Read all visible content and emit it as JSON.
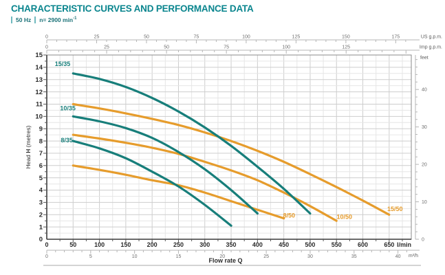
{
  "header": {
    "title": "CHARACTERISTIC CURVES AND PERFORMANCE DATA",
    "frequency": "50 Hz",
    "speed_prefix": "n= 2900 min",
    "speed_sup": "-1"
  },
  "chart_data": {
    "type": "line",
    "title": "CHARACTERISTIC CURVES AND PERFORMANCE DATA",
    "subtitle": "50 Hz | n= 2900 min-1",
    "grid": {
      "x_minor_lmin": 25,
      "x_major_lmin": 50,
      "y_minor_m": 0.5,
      "y_major_m": 1
    },
    "x_axis": {
      "label_parts": [
        "Flow rate ",
        "Q"
      ],
      "range_lmin": [
        0,
        692
      ],
      "primary": {
        "unit": "l/min",
        "ticks": [
          0,
          50,
          100,
          150,
          200,
          250,
          300,
          350,
          400,
          450,
          500,
          550,
          600,
          650
        ]
      },
      "secondary": {
        "unit": "m³/h",
        "ticks": [
          0,
          5,
          10,
          15,
          20,
          25,
          30,
          35,
          40
        ],
        "minor_step": 1,
        "lmin_per_unit": 16.6667,
        "minor_max": 41
      },
      "top_rulers": [
        {
          "unit": "US g.p.m.",
          "ticks": [
            0,
            25,
            50,
            75,
            100,
            125,
            150,
            175
          ],
          "minor_step": 5,
          "lmin_per_unit": 3.7854,
          "minor_max": 180
        },
        {
          "unit": "Imp g.p.m.",
          "ticks": [
            0,
            25,
            50,
            75,
            100,
            125
          ],
          "minor_step": 5,
          "lmin_per_unit": 4.5461,
          "minor_max": 150
        }
      ]
    },
    "y_axis": {
      "label_parts": [
        "Head ",
        "H",
        " (metres)"
      ],
      "range_m": [
        0,
        15
      ],
      "ticks": [
        0,
        1,
        2,
        3,
        4,
        5,
        6,
        7,
        8,
        9,
        10,
        11,
        12,
        13,
        14,
        15
      ],
      "right_ruler": {
        "unit": "feet",
        "ticks": [
          0,
          10,
          20,
          30,
          40
        ],
        "minor_step": 2,
        "m_per_unit": 0.3048,
        "minor_max": 48
      }
    },
    "colors": {
      "teal": "#177E7A",
      "orange": "#E69C2C",
      "grid_minor": "#e6e6e6",
      "grid_major": "#cdcdcd",
      "plot_border": "#8a8a8a",
      "axis_dark": "#3a3a3a",
      "ruler": "#b5b5b5",
      "rule_line": "#a8a8a8"
    },
    "series": [
      {
        "name": "15/50",
        "color": "#E69C2C",
        "label_at": [
          661,
          2.3
        ],
        "points": [
          [
            50,
            11.0
          ],
          [
            100,
            10.65
          ],
          [
            150,
            10.25
          ],
          [
            200,
            9.8
          ],
          [
            250,
            9.3
          ],
          [
            300,
            8.7
          ],
          [
            350,
            8.0
          ],
          [
            400,
            7.2
          ],
          [
            450,
            6.3
          ],
          [
            500,
            5.3
          ],
          [
            550,
            4.25
          ],
          [
            600,
            3.15
          ],
          [
            650,
            2.0
          ]
        ]
      },
      {
        "name": "10/50",
        "color": "#E69C2C",
        "label_at": [
          565,
          1.65
        ],
        "points": [
          [
            50,
            8.5
          ],
          [
            100,
            8.2
          ],
          [
            150,
            7.85
          ],
          [
            200,
            7.45
          ],
          [
            250,
            6.95
          ],
          [
            300,
            6.3
          ],
          [
            350,
            5.6
          ],
          [
            400,
            4.8
          ],
          [
            450,
            3.8
          ],
          [
            500,
            2.7
          ],
          [
            550,
            1.5
          ]
        ]
      },
      {
        "name": "8/50",
        "color": "#E69C2C",
        "label_at": [
          460,
          1.75
        ],
        "points": [
          [
            50,
            6.0
          ],
          [
            100,
            5.65
          ],
          [
            150,
            5.25
          ],
          [
            200,
            4.8
          ],
          [
            250,
            4.4
          ],
          [
            300,
            3.8
          ],
          [
            350,
            3.1
          ],
          [
            400,
            2.4
          ],
          [
            450,
            1.7
          ]
        ]
      },
      {
        "name": "15/35",
        "color": "#177E7A",
        "label_at": [
          30,
          14.1
        ],
        "points": [
          [
            50,
            13.5
          ],
          [
            100,
            13.05
          ],
          [
            150,
            12.4
          ],
          [
            200,
            11.5
          ],
          [
            250,
            10.4
          ],
          [
            300,
            9.1
          ],
          [
            350,
            7.6
          ],
          [
            400,
            5.9
          ],
          [
            450,
            4.1
          ],
          [
            500,
            2.1
          ]
        ]
      },
      {
        "name": "10/35",
        "color": "#177E7A",
        "label_at": [
          40,
          10.5
        ],
        "points": [
          [
            50,
            10.0
          ],
          [
            100,
            9.6
          ],
          [
            150,
            9.05
          ],
          [
            200,
            8.25
          ],
          [
            250,
            7.1
          ],
          [
            300,
            5.7
          ],
          [
            350,
            4.0
          ],
          [
            400,
            2.1
          ]
        ]
      },
      {
        "name": "8/35",
        "color": "#177E7A",
        "label_at": [
          38,
          7.9
        ],
        "points": [
          [
            50,
            8.0
          ],
          [
            100,
            7.4
          ],
          [
            150,
            6.6
          ],
          [
            200,
            5.5
          ],
          [
            250,
            4.3
          ],
          [
            300,
            2.8
          ],
          [
            350,
            1.1
          ]
        ]
      }
    ]
  }
}
